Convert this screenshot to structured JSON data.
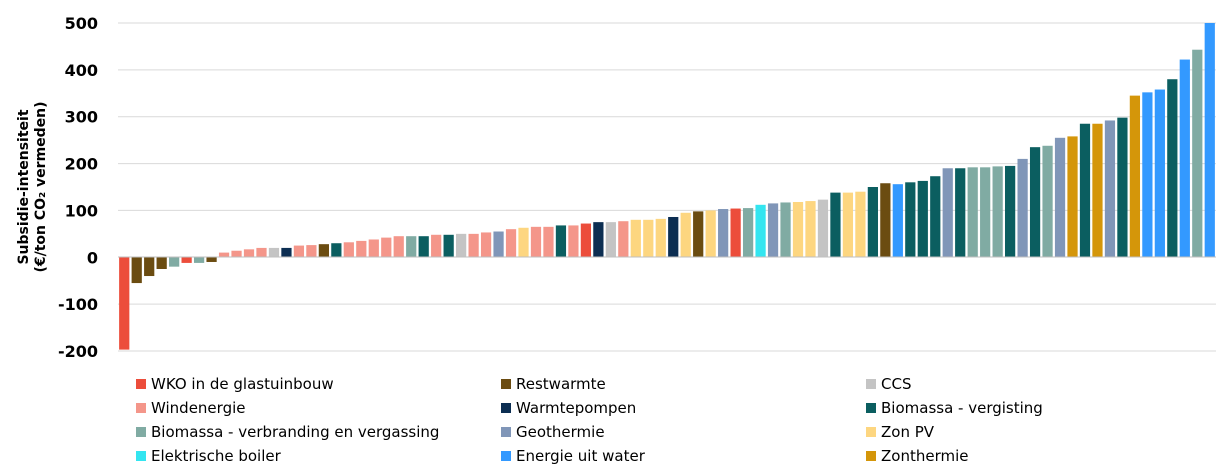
{
  "chart_data": {
    "type": "bar",
    "ylabel_line1": "Subsidie-intensiteit",
    "ylabel_line2": "(€/ton CO₂ vermeden)",
    "ylim": [
      -200,
      500
    ],
    "yticks": [
      -200,
      -100,
      0,
      100,
      200,
      300,
      400,
      500
    ],
    "grid": true,
    "legend_position": "bottom",
    "categories": [
      {
        "key": "wko",
        "name": "WKO in de glastuinbouw",
        "color": "#ec4d3b"
      },
      {
        "key": "rest",
        "name": "Restwarmte",
        "color": "#6b4c11"
      },
      {
        "key": "ccs",
        "name": "CCS",
        "color": "#c4c4c4"
      },
      {
        "key": "wind",
        "name": "Windenergie",
        "color": "#f4968a"
      },
      {
        "key": "wp",
        "name": "Warmtepompen",
        "color": "#0c2e52"
      },
      {
        "key": "bv",
        "name": "Biomassa - vergisting",
        "color": "#0b5e60"
      },
      {
        "key": "bve",
        "name": "Biomassa - verbranding en vergassing",
        "color": "#80aba3"
      },
      {
        "key": "geo",
        "name": "Geothermie",
        "color": "#8096b8"
      },
      {
        "key": "pv",
        "name": "Zon PV",
        "color": "#fdd680"
      },
      {
        "key": "eb",
        "name": "Elektrische boiler",
        "color": "#33e5f0"
      },
      {
        "key": "euw",
        "name": "Energie uit water",
        "color": "#3399ff"
      },
      {
        "key": "zt",
        "name": "Zonthermie",
        "color": "#d4960a"
      }
    ],
    "bars": [
      {
        "cat": "wko",
        "value": -197
      },
      {
        "cat": "rest",
        "value": -55
      },
      {
        "cat": "rest",
        "value": -40
      },
      {
        "cat": "rest",
        "value": -25
      },
      {
        "cat": "bve",
        "value": -20
      },
      {
        "cat": "wko",
        "value": -12
      },
      {
        "cat": "bve",
        "value": -12
      },
      {
        "cat": "rest",
        "value": -10
      },
      {
        "cat": "wind",
        "value": 10
      },
      {
        "cat": "wind",
        "value": 14
      },
      {
        "cat": "wind",
        "value": 17
      },
      {
        "cat": "wind",
        "value": 20
      },
      {
        "cat": "ccs",
        "value": 20
      },
      {
        "cat": "wp",
        "value": 20
      },
      {
        "cat": "wind",
        "value": 25
      },
      {
        "cat": "wind",
        "value": 26
      },
      {
        "cat": "rest",
        "value": 28
      },
      {
        "cat": "bv",
        "value": 30
      },
      {
        "cat": "wind",
        "value": 32
      },
      {
        "cat": "wind",
        "value": 35
      },
      {
        "cat": "wind",
        "value": 38
      },
      {
        "cat": "wind",
        "value": 42
      },
      {
        "cat": "wind",
        "value": 45
      },
      {
        "cat": "bve",
        "value": 45
      },
      {
        "cat": "bv",
        "value": 45
      },
      {
        "cat": "wind",
        "value": 48
      },
      {
        "cat": "bv",
        "value": 48
      },
      {
        "cat": "ccs",
        "value": 50
      },
      {
        "cat": "wind",
        "value": 50
      },
      {
        "cat": "wind",
        "value": 53
      },
      {
        "cat": "geo",
        "value": 55
      },
      {
        "cat": "wind",
        "value": 60
      },
      {
        "cat": "pv",
        "value": 63
      },
      {
        "cat": "wind",
        "value": 65
      },
      {
        "cat": "wind",
        "value": 65
      },
      {
        "cat": "bv",
        "value": 68
      },
      {
        "cat": "wind",
        "value": 68
      },
      {
        "cat": "wko",
        "value": 72
      },
      {
        "cat": "wp",
        "value": 75
      },
      {
        "cat": "ccs",
        "value": 75
      },
      {
        "cat": "wind",
        "value": 77
      },
      {
        "cat": "pv",
        "value": 80
      },
      {
        "cat": "pv",
        "value": 80
      },
      {
        "cat": "pv",
        "value": 82
      },
      {
        "cat": "wp",
        "value": 86
      },
      {
        "cat": "pv",
        "value": 95
      },
      {
        "cat": "rest",
        "value": 98
      },
      {
        "cat": "pv",
        "value": 100
      },
      {
        "cat": "geo",
        "value": 103
      },
      {
        "cat": "wko",
        "value": 104
      },
      {
        "cat": "bve",
        "value": 105
      },
      {
        "cat": "eb",
        "value": 112
      },
      {
        "cat": "geo",
        "value": 115
      },
      {
        "cat": "bve",
        "value": 117
      },
      {
        "cat": "pv",
        "value": 118
      },
      {
        "cat": "pv",
        "value": 120
      },
      {
        "cat": "ccs",
        "value": 123
      },
      {
        "cat": "bv",
        "value": 138
      },
      {
        "cat": "pv",
        "value": 138
      },
      {
        "cat": "pv",
        "value": 140
      },
      {
        "cat": "bv",
        "value": 150
      },
      {
        "cat": "rest",
        "value": 158
      },
      {
        "cat": "euw",
        "value": 156
      },
      {
        "cat": "bv",
        "value": 160
      },
      {
        "cat": "bv",
        "value": 163
      },
      {
        "cat": "bv",
        "value": 173
      },
      {
        "cat": "geo",
        "value": 190
      },
      {
        "cat": "bv",
        "value": 190
      },
      {
        "cat": "bve",
        "value": 192
      },
      {
        "cat": "bve",
        "value": 192
      },
      {
        "cat": "bve",
        "value": 194
      },
      {
        "cat": "bv",
        "value": 195
      },
      {
        "cat": "geo",
        "value": 210
      },
      {
        "cat": "bv",
        "value": 235
      },
      {
        "cat": "bve",
        "value": 238
      },
      {
        "cat": "geo",
        "value": 255
      },
      {
        "cat": "zt",
        "value": 258
      },
      {
        "cat": "bv",
        "value": 285
      },
      {
        "cat": "zt",
        "value": 285
      },
      {
        "cat": "geo",
        "value": 292
      },
      {
        "cat": "bv",
        "value": 298
      },
      {
        "cat": "zt",
        "value": 345
      },
      {
        "cat": "euw",
        "value": 352
      },
      {
        "cat": "euw",
        "value": 358
      },
      {
        "cat": "bv",
        "value": 380
      },
      {
        "cat": "euw",
        "value": 422
      },
      {
        "cat": "bve",
        "value": 443
      },
      {
        "cat": "euw",
        "value": 500
      }
    ]
  }
}
